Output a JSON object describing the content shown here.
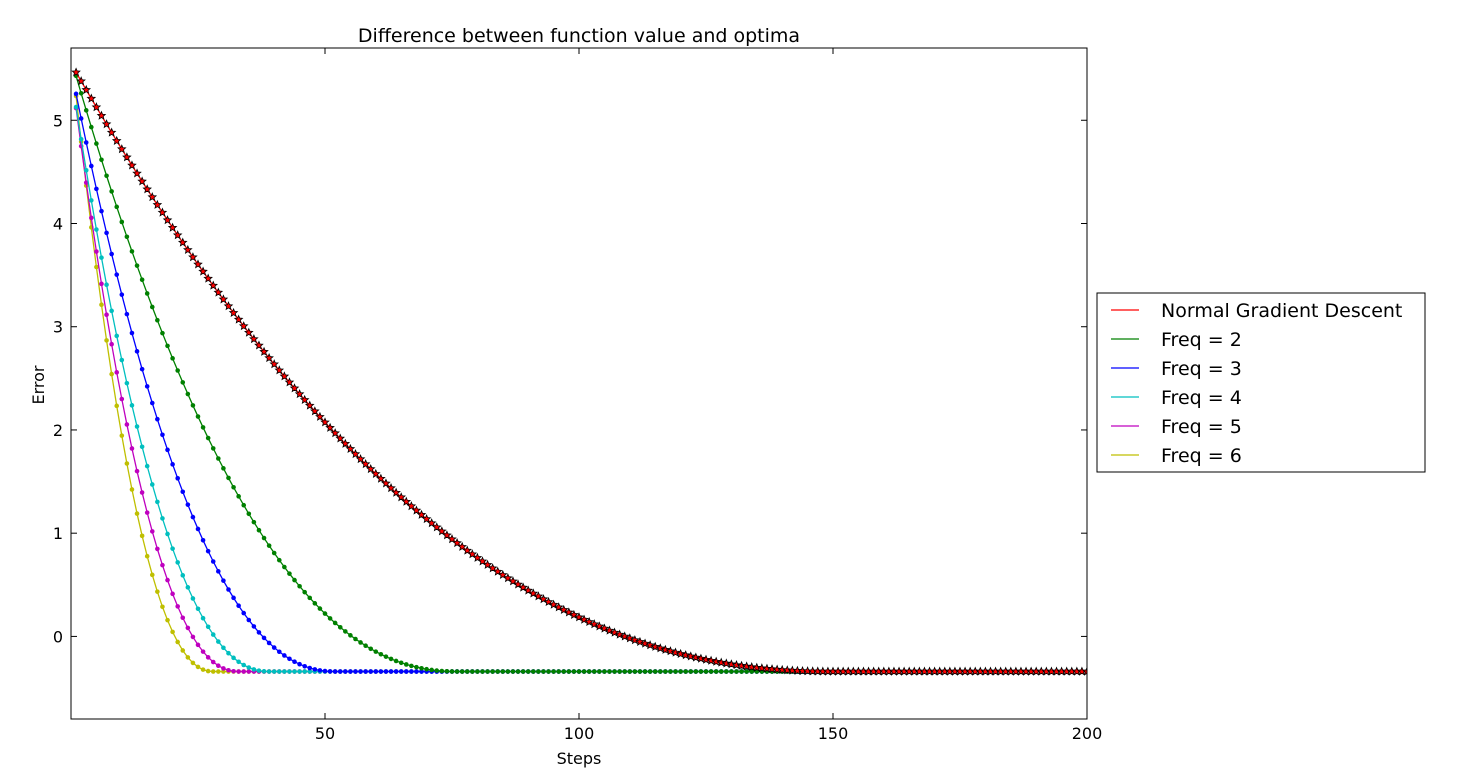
{
  "chart_data": {
    "type": "line",
    "title": "Difference between function value and optima",
    "xlabel": "Steps",
    "ylabel": "Error",
    "xlim": [
      0,
      200
    ],
    "ylim": [
      -0.8,
      5.7
    ],
    "xticks": [
      50,
      100,
      150,
      200
    ],
    "yticks": [
      0,
      1,
      2,
      3,
      4,
      5
    ],
    "grid": false,
    "legend_position": "outside-right",
    "floor": -0.34,
    "series": [
      {
        "name": "Normal Gradient Descent",
        "color": "#ff0000",
        "marker": "star",
        "marker_color": "#000000",
        "start": 5.55,
        "tau": 150,
        "power": 2.2
      },
      {
        "name": "Freq = 2",
        "color": "#008000",
        "marker": "dot",
        "marker_color": "#008000",
        "start": 5.6,
        "tau": 76,
        "power": 2.2
      },
      {
        "name": "Freq = 3",
        "color": "#0000ff",
        "marker": "dot",
        "marker_color": "#0000ff",
        "start": 5.5,
        "tau": 52,
        "power": 2.2
      },
      {
        "name": "Freq = 4",
        "color": "#00bfbf",
        "marker": "dot",
        "marker_color": "#00bfbf",
        "start": 5.45,
        "tau": 39,
        "power": 2.2
      },
      {
        "name": "Freq = 5",
        "color": "#bf00bf",
        "marker": "dot",
        "marker_color": "#bf00bf",
        "start": 5.5,
        "tau": 33,
        "power": 2.2
      },
      {
        "name": "Freq = 6",
        "color": "#bfbf00",
        "marker": "dot",
        "marker_color": "#bfbf00",
        "start": 5.7,
        "tau": 28,
        "power": 2.2
      }
    ]
  }
}
